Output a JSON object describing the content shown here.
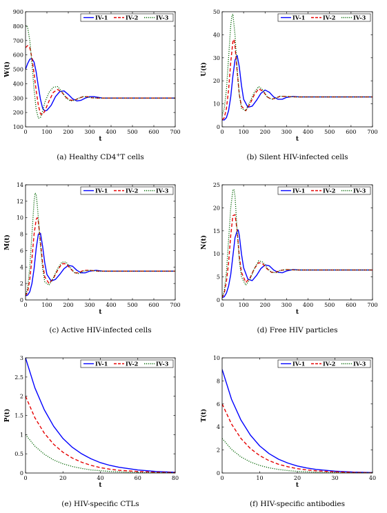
{
  "colors": {
    "IV-1": "#0000ff",
    "IV-2": "#e60000",
    "IV-3": "#006400"
  },
  "chart_data": [
    {
      "id": "a",
      "type": "line",
      "title": "",
      "caption": "(a)  Healthy CD4+T cells",
      "xlabel": "t",
      "ylabel": "W(t)",
      "xlim": [
        0,
        700
      ],
      "ylim": [
        100,
        900
      ],
      "xticks": [
        0,
        100,
        200,
        300,
        400,
        500,
        600,
        700
      ],
      "yticks": [
        100,
        200,
        300,
        400,
        500,
        600,
        700,
        800,
        900
      ],
      "legend": "top-right",
      "grid": false,
      "series": [
        {
          "name": "IV-1",
          "style": "solid",
          "x": [
            0,
            10,
            20,
            30,
            40,
            50,
            60,
            70,
            80,
            90,
            100,
            120,
            140,
            160,
            180,
            200,
            220,
            240,
            260,
            280,
            300,
            320,
            340,
            360,
            400,
            500,
            600,
            700
          ],
          "y": [
            500,
            540,
            570,
            575,
            550,
            480,
            380,
            290,
            230,
            210,
            215,
            250,
            310,
            345,
            350,
            325,
            295,
            280,
            285,
            300,
            310,
            310,
            305,
            300,
            300,
            300,
            300,
            300
          ]
        },
        {
          "name": "IV-2",
          "style": "dashed",
          "x": [
            0,
            10,
            20,
            30,
            40,
            50,
            60,
            70,
            80,
            90,
            110,
            130,
            150,
            170,
            190,
            210,
            230,
            250,
            270,
            290,
            310,
            330,
            350,
            400,
            500,
            600,
            700
          ],
          "y": [
            650,
            665,
            650,
            580,
            470,
            350,
            250,
            190,
            185,
            210,
            280,
            340,
            360,
            340,
            305,
            285,
            285,
            300,
            310,
            310,
            302,
            300,
            300,
            300,
            300,
            300,
            300
          ]
        },
        {
          "name": "IV-3",
          "style": "dotted",
          "x": [
            0,
            5,
            10,
            20,
            30,
            40,
            50,
            60,
            70,
            80,
            90,
            110,
            130,
            150,
            170,
            190,
            210,
            230,
            250,
            270,
            290,
            310,
            340,
            400,
            500,
            600,
            700
          ],
          "y": [
            800,
            805,
            790,
            700,
            540,
            360,
            220,
            160,
            165,
            210,
            270,
            340,
            375,
            380,
            345,
            300,
            280,
            285,
            300,
            310,
            308,
            302,
            300,
            300,
            300,
            300,
            300
          ]
        }
      ]
    },
    {
      "id": "b",
      "type": "line",
      "title": "",
      "caption": "(b)  Silent HIV-infected cells",
      "xlabel": "t",
      "ylabel": "U(t)",
      "xlim": [
        0,
        700
      ],
      "ylim": [
        0,
        50
      ],
      "xticks": [
        0,
        100,
        200,
        300,
        400,
        500,
        600,
        700
      ],
      "yticks": [
        0,
        10,
        20,
        30,
        40,
        50
      ],
      "legend": "top-right",
      "grid": false,
      "series": [
        {
          "name": "IV-1",
          "style": "solid",
          "x": [
            0,
            10,
            20,
            30,
            40,
            50,
            60,
            70,
            80,
            90,
            100,
            120,
            140,
            160,
            180,
            200,
            220,
            240,
            260,
            280,
            300,
            330,
            360,
            400,
            500,
            600,
            700
          ],
          "y": [
            3,
            3,
            4,
            7,
            13,
            22,
            29,
            31,
            26,
            18,
            12,
            8.5,
            9,
            11.5,
            14.5,
            16,
            15,
            13,
            12,
            12,
            12.8,
            13.2,
            13,
            13,
            13,
            13,
            13
          ]
        },
        {
          "name": "IV-2",
          "style": "dashed",
          "x": [
            0,
            10,
            20,
            30,
            40,
            50,
            55,
            60,
            70,
            80,
            90,
            110,
            130,
            150,
            170,
            190,
            210,
            230,
            250,
            270,
            300,
            340,
            400,
            500,
            600,
            700
          ],
          "y": [
            3,
            4,
            8,
            16,
            28,
            37,
            38,
            35,
            24,
            14,
            9,
            7,
            10,
            14,
            16.5,
            15.5,
            13,
            12,
            12.5,
            13.3,
            13.2,
            13,
            13,
            13,
            13,
            13
          ]
        },
        {
          "name": "IV-3",
          "style": "dotted",
          "x": [
            0,
            10,
            20,
            30,
            40,
            45,
            50,
            60,
            70,
            80,
            90,
            110,
            130,
            150,
            170,
            190,
            210,
            230,
            250,
            270,
            300,
            340,
            400,
            500,
            600,
            700
          ],
          "y": [
            5,
            8,
            16,
            30,
            44,
            48,
            49,
            40,
            25,
            14,
            8,
            7,
            11,
            15,
            17.5,
            16,
            13,
            12,
            12.5,
            13.3,
            13.2,
            13,
            13,
            13,
            13,
            13
          ]
        }
      ]
    },
    {
      "id": "c",
      "type": "line",
      "title": "",
      "caption": "(c)  Active HIV-infected cells",
      "xlabel": "t",
      "ylabel": "M(t)",
      "xlim": [
        0,
        700
      ],
      "ylim": [
        0,
        14
      ],
      "xticks": [
        0,
        100,
        200,
        300,
        400,
        500,
        600,
        700
      ],
      "yticks": [
        0,
        2,
        4,
        6,
        8,
        10,
        12,
        14
      ],
      "legend": "top-right",
      "grid": false,
      "series": [
        {
          "name": "IV-1",
          "style": "solid",
          "x": [
            0,
            10,
            20,
            30,
            40,
            50,
            60,
            70,
            80,
            90,
            100,
            120,
            140,
            160,
            180,
            200,
            220,
            240,
            260,
            280,
            300,
            330,
            360,
            400,
            500,
            600,
            700
          ],
          "y": [
            0.5,
            0.6,
            1,
            2,
            3.8,
            6.3,
            8,
            8.1,
            6.5,
            4.5,
            3.1,
            2.3,
            2.5,
            3.1,
            3.8,
            4.2,
            4.1,
            3.6,
            3.3,
            3.3,
            3.5,
            3.6,
            3.5,
            3.5,
            3.5,
            3.5,
            3.5
          ]
        },
        {
          "name": "IV-2",
          "style": "dashed",
          "x": [
            0,
            10,
            20,
            30,
            40,
            50,
            55,
            60,
            70,
            80,
            90,
            110,
            130,
            150,
            170,
            190,
            210,
            230,
            250,
            270,
            300,
            340,
            400,
            500,
            600,
            700
          ],
          "y": [
            0.5,
            1,
            2.5,
            5,
            8,
            9.8,
            10,
            9.5,
            7,
            4.5,
            2.8,
            2,
            2.6,
            3.6,
            4.4,
            4.4,
            3.8,
            3.3,
            3.3,
            3.6,
            3.6,
            3.5,
            3.5,
            3.5,
            3.5,
            3.5
          ]
        },
        {
          "name": "IV-3",
          "style": "dotted",
          "x": [
            0,
            10,
            20,
            30,
            40,
            45,
            50,
            55,
            60,
            70,
            80,
            90,
            110,
            130,
            150,
            170,
            190,
            210,
            230,
            250,
            270,
            300,
            340,
            400,
            500,
            600,
            700
          ],
          "y": [
            0.5,
            1.5,
            4,
            8,
            12,
            13,
            12.8,
            11.5,
            10,
            6.5,
            3.8,
            2.2,
            1.8,
            2.7,
            3.8,
            4.6,
            4.6,
            3.9,
            3.3,
            3.2,
            3.5,
            3.6,
            3.5,
            3.5,
            3.5,
            3.5,
            3.5
          ]
        }
      ]
    },
    {
      "id": "d",
      "type": "line",
      "title": "",
      "caption": "(d)  Free HIV particles",
      "xlabel": "t",
      "ylabel": "N(t)",
      "xlim": [
        0,
        700
      ],
      "ylim": [
        0,
        25
      ],
      "xticks": [
        0,
        100,
        200,
        300,
        400,
        500,
        600,
        700
      ],
      "yticks": [
        0,
        5,
        10,
        15,
        20,
        25
      ],
      "legend": "top-right",
      "grid": false,
      "series": [
        {
          "name": "IV-1",
          "style": "solid",
          "x": [
            0,
            10,
            20,
            30,
            40,
            50,
            60,
            70,
            75,
            80,
            90,
            100,
            120,
            140,
            160,
            180,
            200,
            220,
            240,
            260,
            280,
            300,
            330,
            360,
            400,
            500,
            600,
            700
          ],
          "y": [
            0.5,
            0.7,
            1.5,
            3,
            5.5,
            9.5,
            13.5,
            15,
            15.2,
            14,
            10,
            7,
            4.5,
            4.2,
            5.3,
            6.8,
            7.6,
            7.4,
            6.5,
            6,
            5.9,
            6.3,
            6.6,
            6.5,
            6.5,
            6.5,
            6.5,
            6.5
          ]
        },
        {
          "name": "IV-2",
          "style": "dashed",
          "x": [
            0,
            10,
            20,
            30,
            40,
            50,
            60,
            70,
            80,
            90,
            110,
            130,
            150,
            170,
            190,
            210,
            230,
            250,
            270,
            300,
            340,
            400,
            500,
            600,
            700
          ],
          "y": [
            0.5,
            1.5,
            4,
            8,
            14,
            18.3,
            18.5,
            15,
            9.5,
            6,
            3.8,
            4.8,
            6.8,
            8.1,
            7.8,
            6.7,
            6,
            6,
            6.4,
            6.6,
            6.5,
            6.5,
            6.5,
            6.5,
            6.5
          ]
        },
        {
          "name": "IV-3",
          "style": "dotted",
          "x": [
            0,
            10,
            20,
            30,
            40,
            50,
            55,
            60,
            70,
            80,
            90,
            110,
            130,
            150,
            170,
            190,
            210,
            230,
            250,
            270,
            300,
            340,
            400,
            500,
            600,
            700
          ],
          "y": [
            0.5,
            2,
            6,
            13,
            20,
            23.8,
            24,
            22.5,
            15,
            8.5,
            5,
            3.2,
            4.5,
            6.8,
            8.5,
            8.2,
            6.9,
            6,
            5.9,
            6.4,
            6.6,
            6.5,
            6.5,
            6.5,
            6.5,
            6.5
          ]
        }
      ]
    },
    {
      "id": "e",
      "type": "line",
      "title": "",
      "caption": "(e)  HIV-specific CTLs",
      "xlabel": "t",
      "ylabel": "P(t)",
      "xlim": [
        0,
        80
      ],
      "ylim": [
        0,
        3
      ],
      "xticks": [
        0,
        20,
        40,
        60,
        80
      ],
      "yticks": [
        0,
        0.5,
        1,
        1.5,
        2,
        2.5,
        3
      ],
      "legend": "top-right",
      "grid": false,
      "series": [
        {
          "name": "IV-1",
          "style": "solid",
          "x": [
            0,
            5,
            10,
            15,
            20,
            25,
            30,
            35,
            40,
            45,
            50,
            60,
            70,
            80
          ],
          "y": [
            3,
            2.22,
            1.65,
            1.22,
            0.9,
            0.67,
            0.5,
            0.37,
            0.27,
            0.2,
            0.15,
            0.08,
            0.04,
            0.02
          ]
        },
        {
          "name": "IV-2",
          "style": "dashed",
          "x": [
            0,
            5,
            10,
            15,
            20,
            25,
            30,
            35,
            40,
            45,
            50,
            60,
            70,
            80
          ],
          "y": [
            2,
            1.44,
            1.04,
            0.75,
            0.54,
            0.39,
            0.28,
            0.2,
            0.14,
            0.1,
            0.07,
            0.04,
            0.02,
            0.01
          ]
        },
        {
          "name": "IV-3",
          "style": "dotted",
          "x": [
            0,
            5,
            10,
            15,
            20,
            25,
            30,
            35,
            40,
            45,
            50,
            60,
            70,
            80
          ],
          "y": [
            1,
            0.7,
            0.49,
            0.34,
            0.24,
            0.17,
            0.12,
            0.08,
            0.06,
            0.04,
            0.03,
            0.01,
            0.01,
            0
          ]
        }
      ]
    },
    {
      "id": "f",
      "type": "line",
      "title": "",
      "caption": "(f)  HIV-specific antibodies",
      "xlabel": "t",
      "ylabel": "T(t)",
      "xlim": [
        0,
        40
      ],
      "ylim": [
        0,
        10
      ],
      "xticks": [
        0,
        10,
        20,
        30,
        40
      ],
      "yticks": [
        0,
        2,
        4,
        6,
        8,
        10
      ],
      "legend": "top-right",
      "grid": false,
      "series": [
        {
          "name": "IV-1",
          "style": "solid",
          "x": [
            0,
            2.5,
            5,
            7.5,
            10,
            12.5,
            15,
            17.5,
            20,
            22.5,
            25,
            30,
            35,
            40
          ],
          "y": [
            9,
            6.4,
            4.6,
            3.3,
            2.35,
            1.68,
            1.2,
            0.86,
            0.61,
            0.44,
            0.31,
            0.16,
            0.08,
            0.04
          ]
        },
        {
          "name": "IV-2",
          "style": "dashed",
          "x": [
            0,
            2.5,
            5,
            7.5,
            10,
            12.5,
            15,
            17.5,
            20,
            22.5,
            25,
            30,
            35,
            40
          ],
          "y": [
            6,
            4.25,
            3,
            2.13,
            1.51,
            1.07,
            0.76,
            0.54,
            0.38,
            0.27,
            0.19,
            0.1,
            0.05,
            0.02
          ]
        },
        {
          "name": "IV-3",
          "style": "dotted",
          "x": [
            0,
            2.5,
            5,
            7.5,
            10,
            12.5,
            15,
            17.5,
            20,
            22.5,
            25,
            30,
            35,
            40
          ],
          "y": [
            3,
            2.05,
            1.4,
            0.96,
            0.66,
            0.45,
            0.31,
            0.21,
            0.14,
            0.1,
            0.07,
            0.03,
            0.01,
            0.01
          ]
        }
      ]
    }
  ]
}
